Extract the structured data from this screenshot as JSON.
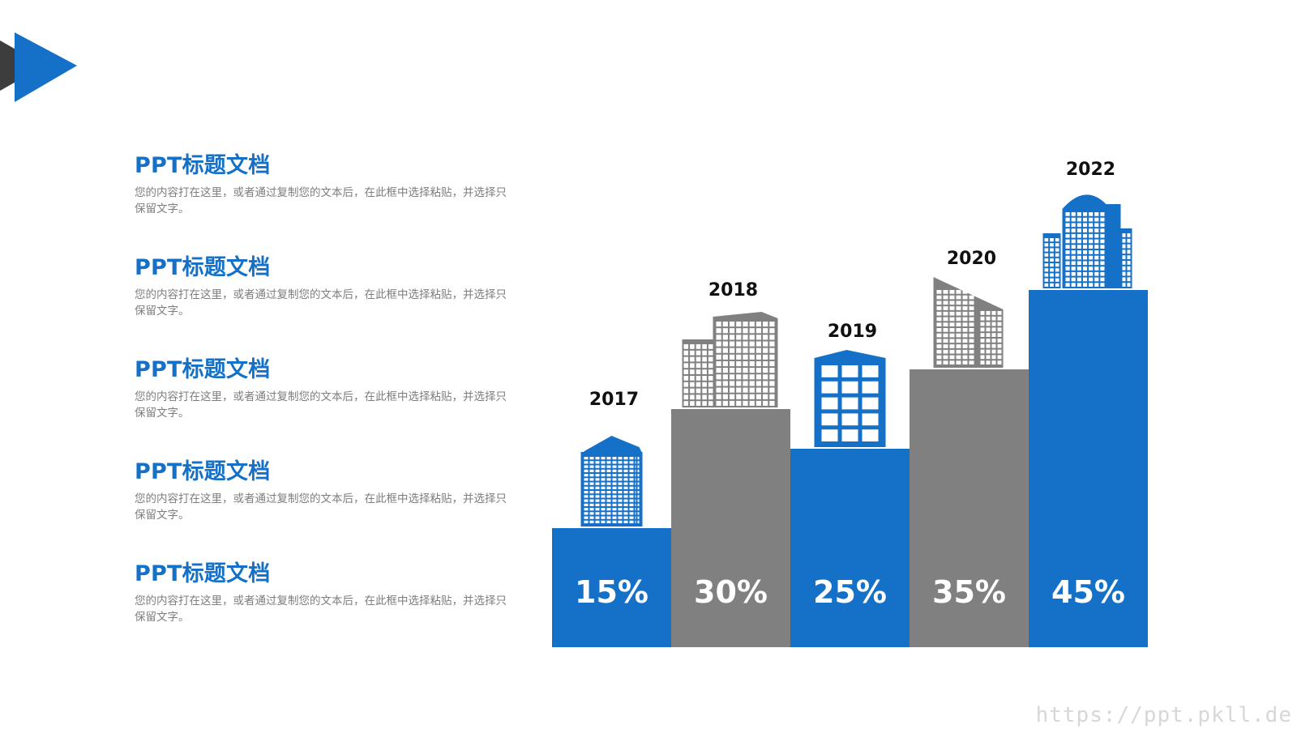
{
  "colors": {
    "blue": "#1570c8",
    "gray": "#808080",
    "dark": "#3d3d3d",
    "white": "#ffffff"
  },
  "sections": [
    {
      "title": "PPT标题文档",
      "desc": "您的内容打在这里，或者通过复制您的文本后，在此框中选择粘贴，并选择只保留文字。"
    },
    {
      "title": "PPT标题文档",
      "desc": "您的内容打在这里，或者通过复制您的文本后，在此框中选择粘贴，并选择只保留文字。"
    },
    {
      "title": "PPT标题文档",
      "desc": "您的内容打在这里，或者通过复制您的文本后，在此框中选择粘贴，并选择只保留文字。"
    },
    {
      "title": "PPT标题文档",
      "desc": "您的内容打在这里，或者通过复制您的文本后，在此框中选择粘贴，并选择只保留文字。"
    },
    {
      "title": "PPT标题文档",
      "desc": "您的内容打在这里，或者通过复制您的文本后，在此框中选择粘贴，并选择只保留文字。"
    }
  ],
  "chart_data": {
    "type": "bar",
    "categories": [
      "2017",
      "2018",
      "2019",
      "2020",
      "2022"
    ],
    "values": [
      15,
      30,
      25,
      35,
      45
    ],
    "value_labels": [
      "15%",
      "30%",
      "25%",
      "35%",
      "45%"
    ],
    "bar_colors": [
      "#1570c8",
      "#808080",
      "#1570c8",
      "#808080",
      "#1570c8"
    ],
    "icons": [
      "building-icon",
      "building-icon",
      "building-icon",
      "building-icon",
      "building-icon"
    ],
    "title": "",
    "xlabel": "",
    "ylabel": "",
    "ylim": [
      0,
      45
    ],
    "grid": false
  },
  "watermark": "https://ppt.pkll.de"
}
